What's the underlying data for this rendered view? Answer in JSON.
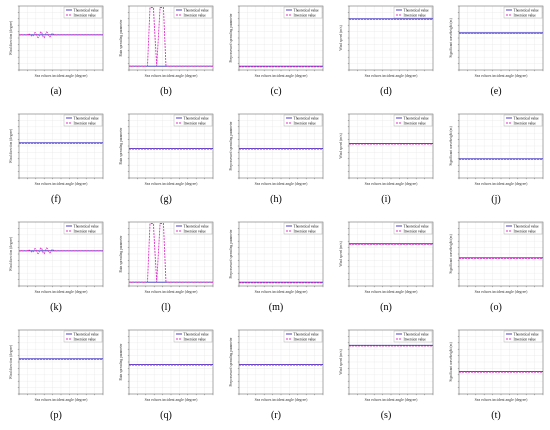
{
  "legend": {
    "theoretical": "Theoretical value",
    "inversion": "Inversion value"
  },
  "colors": {
    "theoretical": "#3b2bbf",
    "inversion": "#e030c8",
    "axis": "#555555",
    "grid": "#e3e3e3"
  },
  "xlabel": "Sea echoes incident angle (degree)",
  "chart_data": [
    {
      "id": "a",
      "label": "(a)",
      "type": "line",
      "ylabel": "Wind direction (degree)",
      "theoretical": 0.55,
      "inversion": "wiggle"
    },
    {
      "id": "b",
      "label": "(b)",
      "type": "line",
      "ylabel": "Rain spreading parameter",
      "theoretical": 0.06,
      "inversion": "pulses"
    },
    {
      "id": "c",
      "label": "(c)",
      "type": "line",
      "ylabel": "Prepossessed spreading parameter",
      "theoretical": 0.06,
      "inversion": "flat"
    },
    {
      "id": "d",
      "label": "(d)",
      "type": "line",
      "ylabel": "Wind speed (m/s)",
      "theoretical": 0.8,
      "inversion": "flat"
    },
    {
      "id": "e",
      "label": "(e)",
      "type": "line",
      "ylabel": "Significant waveheight (m)",
      "theoretical": 0.58,
      "inversion": "flat"
    },
    {
      "id": "f",
      "label": "(f)",
      "type": "line",
      "ylabel": "Wind direction (degree)",
      "theoretical": 0.55,
      "inversion": "flat"
    },
    {
      "id": "g",
      "label": "(g)",
      "type": "line",
      "ylabel": "Rain spreading parameter",
      "theoretical": 0.46,
      "inversion": "flat"
    },
    {
      "id": "h",
      "label": "(h)",
      "type": "line",
      "ylabel": "Prepossessed spreading parameter",
      "theoretical": 0.46,
      "inversion": "flat"
    },
    {
      "id": "i",
      "label": "(i)",
      "type": "line",
      "ylabel": "Wind speed (m/s)",
      "theoretical": 0.54,
      "inversion": "flat"
    },
    {
      "id": "j",
      "label": "(j)",
      "type": "line",
      "ylabel": "Significant waveheight (m)",
      "theoretical": 0.3,
      "inversion": "flat"
    },
    {
      "id": "k",
      "label": "(k)",
      "type": "line",
      "ylabel": "Wind direction (degree)",
      "theoretical": 0.55,
      "inversion": "wiggle"
    },
    {
      "id": "l",
      "label": "(l)",
      "type": "line",
      "ylabel": "Rain spreading parameter",
      "theoretical": 0.06,
      "inversion": "pulses"
    },
    {
      "id": "m",
      "label": "(m)",
      "type": "line",
      "ylabel": "Prepossessed spreading parameter",
      "theoretical": 0.06,
      "inversion": "flat"
    },
    {
      "id": "n",
      "label": "(n)",
      "type": "line",
      "ylabel": "Wind speed (m/s)",
      "theoretical": 0.66,
      "inversion": "flat"
    },
    {
      "id": "o",
      "label": "(o)",
      "type": "line",
      "ylabel": "Significant waveheight (m)",
      "theoretical": 0.44,
      "inversion": "flat"
    },
    {
      "id": "p",
      "label": "(p)",
      "type": "line",
      "ylabel": "Wind direction (degree)",
      "theoretical": 0.55,
      "inversion": "flat"
    },
    {
      "id": "q",
      "label": "(q)",
      "type": "line",
      "ylabel": "Rain spreading parameter",
      "theoretical": 0.46,
      "inversion": "flat"
    },
    {
      "id": "r",
      "label": "(r)",
      "type": "line",
      "ylabel": "Prepossessed spreading parameter",
      "theoretical": 0.46,
      "inversion": "flat"
    },
    {
      "id": "s",
      "label": "(s)",
      "type": "line",
      "ylabel": "Wind speed (m/s)",
      "theoretical": 0.76,
      "inversion": "flat"
    },
    {
      "id": "t",
      "label": "(t)",
      "type": "line",
      "ylabel": "Significant waveheight (m)",
      "theoretical": 0.35,
      "inversion": "flat"
    }
  ]
}
